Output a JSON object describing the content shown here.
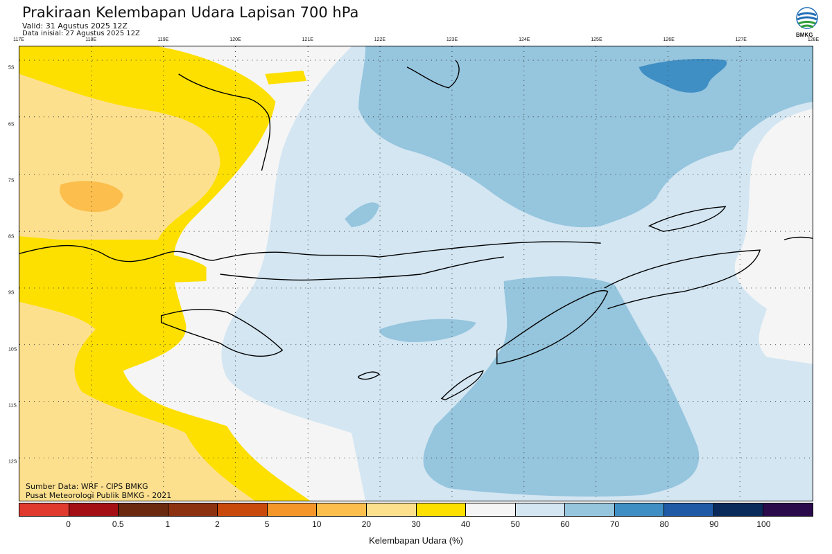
{
  "header": {
    "title": "Prakiraan Kelembapan Udara Lapisan 700 hPa",
    "valid": "Valid: 31 Agustus 2025 12Z",
    "init": "Data inisial: 27 Agustus 2025 12Z"
  },
  "logo": {
    "text": "BMKG",
    "icon": "bmkg-logo-icon"
  },
  "map": {
    "lon_labels": [
      "117E",
      "118E",
      "119E",
      "120E",
      "121E",
      "122E",
      "123E",
      "124E",
      "125E",
      "126E",
      "127E",
      "128E"
    ],
    "lat_labels": [
      "5S",
      "6S",
      "7S",
      "8S",
      "9S",
      "10S",
      "11S",
      "12S"
    ],
    "lon_range": [
      117,
      128
    ],
    "lat_range": [
      4.6,
      12.7
    ],
    "grid": "dotted"
  },
  "footer": {
    "source": "Sumber Data: WRF - CIPS BMKG",
    "center": "Pusat Meteorologi Publik BMKG - 2021"
  },
  "colorbar": {
    "title": "Kelembapan Udara (%)",
    "ticks": [
      "0",
      "0.5",
      "1",
      "2",
      "5",
      "10",
      "20",
      "30",
      "40",
      "50",
      "60",
      "70",
      "80",
      "90",
      "100"
    ],
    "colors": [
      "#e03a2e",
      "#a30f15",
      "#6b2a10",
      "#8c3210",
      "#c9480c",
      "#f5962a",
      "#fcbe4c",
      "#fde08e",
      "#fde000",
      "#f5f5f5",
      "#d3e6f2",
      "#96c5de",
      "#3f8fc5",
      "#1f5aa6",
      "#0b2a5c",
      "#2b0a4c"
    ]
  }
}
